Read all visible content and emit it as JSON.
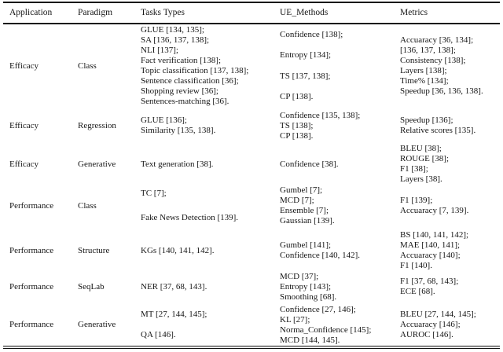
{
  "table": {
    "columns": [
      "Application",
      "Paradigm",
      "Tasks Types",
      "UE_Methods",
      "Metrics"
    ],
    "rows": [
      {
        "application": "Efficacy",
        "paradigm": "Class",
        "tasks": [
          "GLUE [134, 135];",
          "SA [136, 137, 138];",
          "NLI [137];",
          "Fact verification [138];",
          "Topic classification [137, 138];",
          "Sentence classification [36];",
          "Shopping review [36];",
          "Sentences-matching [36]."
        ],
        "ue_methods": [
          "Confidence [138];",
          "Entropy [134];",
          "TS [137, 138];",
          "CP [138]."
        ],
        "metrics": [
          "Accuaracy [36, 134];",
          "[136, 137, 138];",
          "Consistency [138];",
          "Layers [138];",
          "Time% [134];",
          "Speedup [36, 136, 138]."
        ]
      },
      {
        "application": "Efficacy",
        "paradigm": "Regression",
        "tasks": [
          "GLUE [136];",
          "Similarity [135, 138]."
        ],
        "ue_methods": [
          "Confidence [135, 138];",
          "TS [138];",
          "CP [138]."
        ],
        "metrics": [
          "Speedup [136];",
          "Relative scores [135]."
        ]
      },
      {
        "application": "Efficacy",
        "paradigm": "Generative",
        "tasks": [
          "Text generation [38]."
        ],
        "ue_methods": [
          "Confidence [38]."
        ],
        "metrics": [
          "BLEU [38];",
          "ROUGE [38];",
          "F1 [38];",
          "Layers [38]."
        ]
      },
      {
        "application": "Performance",
        "paradigm": "Class",
        "tasks": [
          "TC [7];",
          "Fake News Detection [139]."
        ],
        "ue_methods": [
          "Gumbel [7];",
          "MCD [7];",
          "Ensemble [7];",
          "Gaussian [139]."
        ],
        "metrics": [
          "F1 [139];",
          "Accuaracy [7, 139]."
        ]
      },
      {
        "application": "Performance",
        "paradigm": "Structure",
        "tasks": [
          "KGs [140, 141, 142]."
        ],
        "ue_methods": [
          "Gumbel [141];",
          "Confidence [140, 142]."
        ],
        "metrics": [
          "BS [140, 141, 142];",
          "MAE [140, 141];",
          "Accuaracy [140];",
          "F1 [140]."
        ]
      },
      {
        "application": "Performance",
        "paradigm": "SeqLab",
        "tasks": [
          "NER [37, 68, 143]."
        ],
        "ue_methods": [
          "MCD [37];",
          "Entropy [143];",
          "Smoothing [68]."
        ],
        "metrics": [
          "F1 [37, 68, 143];",
          "ECE [68]."
        ]
      },
      {
        "application": "Performance",
        "paradigm": "Generative",
        "tasks": [
          "MT [27, 144, 145];",
          "QA [146]."
        ],
        "ue_methods": [
          "Confidence [27, 146];",
          "KL [27];",
          "Norma_Confidence [145];",
          "MCD [144, 145]."
        ],
        "metrics": [
          "BLEU [27, 144, 145];",
          "Accuaracy [146];",
          "AUROC [146]."
        ]
      }
    ]
  }
}
